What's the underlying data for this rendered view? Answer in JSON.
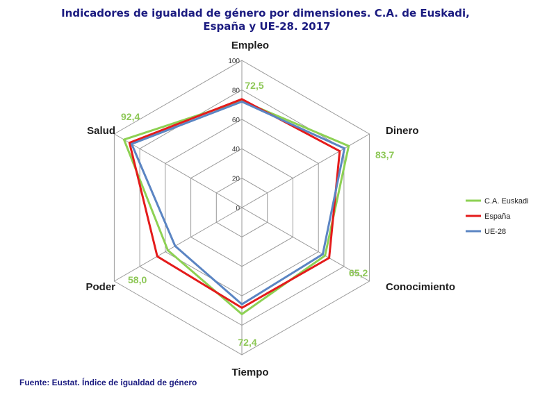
{
  "chart_data": {
    "type": "radar",
    "title": "Indicadores  de igualdad  de género por dimensiones.  C.A. de Euskadi, España y UE-28. 2017",
    "title_lines": [
      "Indicadores  de igualdad  de género por dimensiones.  C.A. de Euskadi,",
      "España y UE-28. 2017"
    ],
    "categories": [
      "Empleo",
      "Dinero",
      "Conocimiento",
      "Tiempo",
      "Poder",
      "Salud"
    ],
    "rlim": [
      0,
      100
    ],
    "ticks": [
      "0",
      "20",
      "40",
      "60",
      "80",
      "100"
    ],
    "tick_values": [
      0,
      20,
      40,
      60,
      80,
      100
    ],
    "series": [
      {
        "name": "C.A. Euskadi",
        "color": "#8dd153",
        "values": [
          72.5,
          83.7,
          65.2,
          72.4,
          58.0,
          92.4
        ]
      },
      {
        "name": "España",
        "color": "#e41b1b",
        "values": [
          73.7,
          76.7,
          68.4,
          68.1,
          66.3,
          88.1
        ]
      },
      {
        "name": "UE-28",
        "color": "#5b85c3",
        "values": [
          72.0,
          80.4,
          63.4,
          65.7,
          52.3,
          86.4
        ]
      }
    ],
    "data_labels": [
      "72,5",
      "83,7",
      "65,2",
      "72,4",
      "58,0",
      "92,4"
    ],
    "data_label_color": "#8dc756",
    "legend_position": "right",
    "source": "Fuente: Eustat. Índice de igualdad de género"
  }
}
